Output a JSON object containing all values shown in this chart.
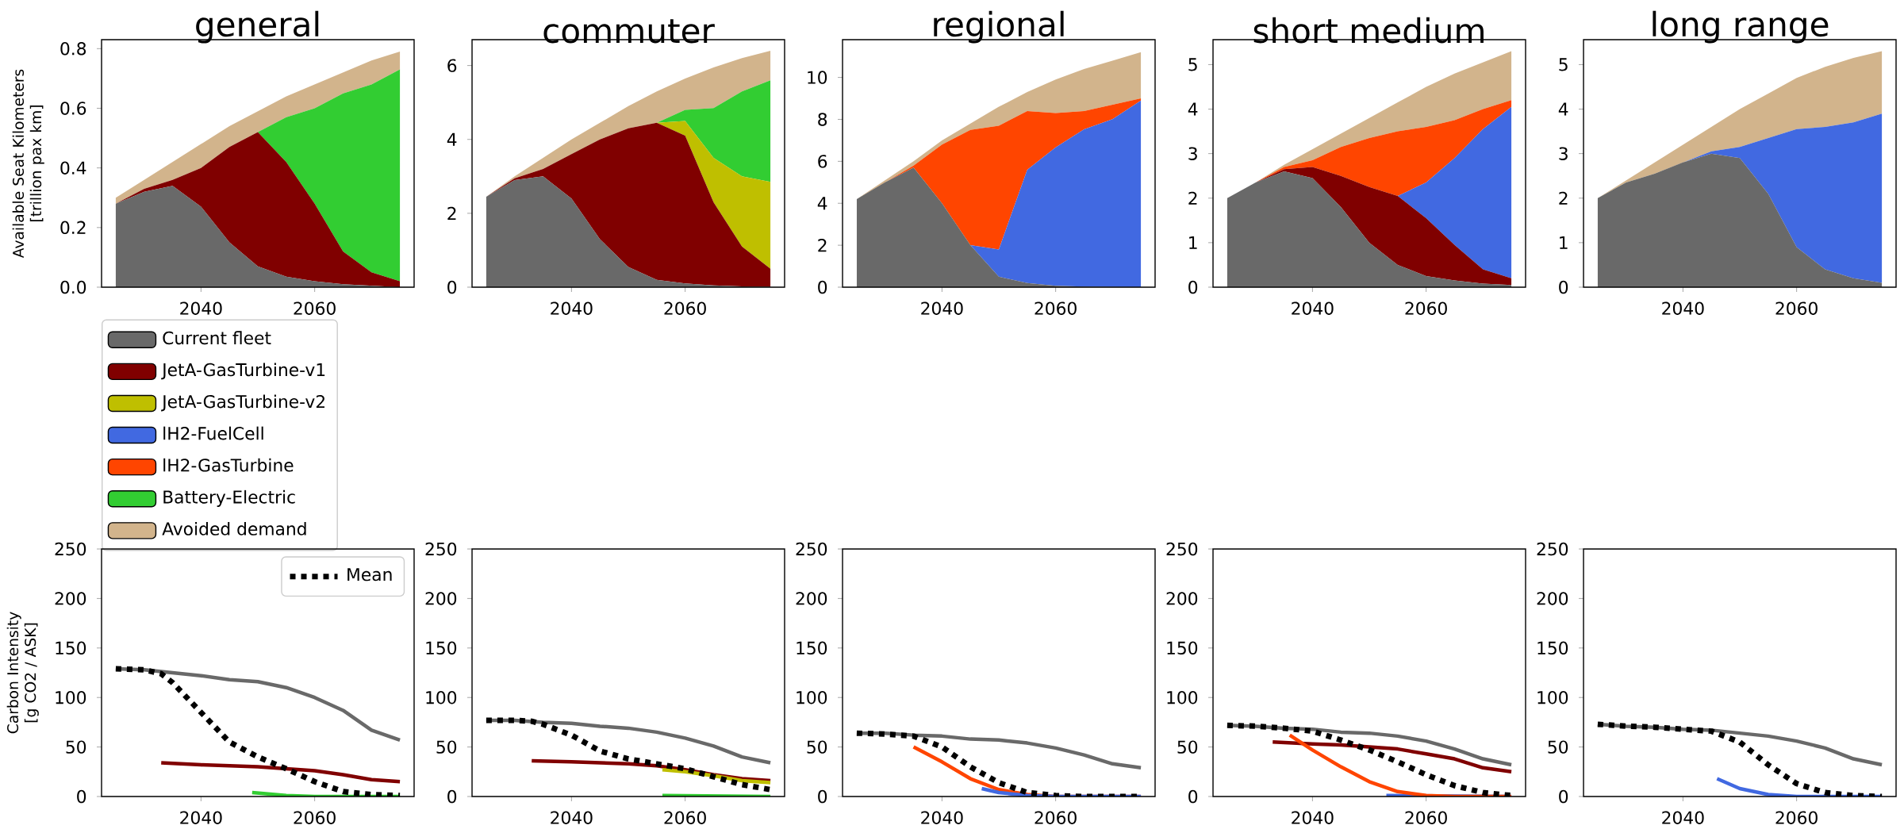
{
  "chart_data": [
    {
      "type": "area",
      "stacked": true,
      "title": "general",
      "ylabel": "Available Seat Kilometers [trillion pax km]",
      "legend": "bottom",
      "x": [
        2025,
        2030,
        2035,
        2040,
        2045,
        2050,
        2055,
        2060,
        2065,
        2070,
        2075
      ],
      "xlim": [
        2022.5,
        2077.5
      ],
      "xticks": [
        2040,
        2060
      ],
      "ylim": [
        0,
        0.83
      ],
      "yticks": [
        {
          "value": 0,
          "label": "0.0"
        },
        0.2,
        0.4,
        0.6,
        0.8
      ],
      "series": [
        {
          "name": "Current fleet",
          "color": "#696969",
          "values": [
            0.28,
            0.32,
            0.34,
            0.27,
            0.15,
            0.07,
            0.035,
            0.02,
            0.01,
            0.005,
            0
          ]
        },
        {
          "name": "JetA-GasTurbine-v1",
          "color": "#800000",
          "values": [
            0,
            0.01,
            0.02,
            0.13,
            0.32,
            0.45,
            0.385,
            0.26,
            0.11,
            0.045,
            0.02
          ]
        },
        {
          "name": "JetA-GasTurbine-v2",
          "color": "#bfbf00",
          "values": [
            null,
            null,
            null,
            null,
            null,
            null,
            null,
            null,
            null,
            null,
            null
          ]
        },
        {
          "name": "lH2-FuelCell",
          "color": "#4169e1",
          "values": [
            null,
            null,
            null,
            null,
            null,
            null,
            null,
            null,
            null,
            null,
            null
          ]
        },
        {
          "name": "lH2-GasTurbine",
          "color": "#ff4500",
          "values": [
            null,
            null,
            null,
            null,
            null,
            null,
            null,
            null,
            null,
            null,
            null
          ]
        },
        {
          "name": "Battery-Electric",
          "color": "#32cd32",
          "values": [
            0,
            0,
            0,
            0,
            0,
            0,
            0.15,
            0.32,
            0.53,
            0.63,
            0.71
          ]
        },
        {
          "name": "Avoided demand",
          "color": "#d2b48c",
          "values": [
            0.02,
            0.03,
            0.06,
            0.08,
            0.07,
            0.07,
            0.07,
            0.08,
            0.07,
            0.08,
            0.06
          ]
        }
      ]
    },
    {
      "type": "area",
      "stacked": true,
      "title": "commuter",
      "x": [
        2025,
        2030,
        2035,
        2040,
        2045,
        2050,
        2055,
        2060,
        2065,
        2070,
        2075
      ],
      "xlim": [
        2022.5,
        2077.5
      ],
      "xticks": [
        2040,
        2060
      ],
      "ylim": [
        0,
        6.7
      ],
      "yticks": [
        0,
        2,
        4,
        6
      ],
      "series": [
        {
          "color": "#696969",
          "values": [
            2.45,
            2.9,
            3.0,
            2.4,
            1.3,
            0.55,
            0.2,
            0.1,
            0.05,
            0.02,
            0.01
          ]
        },
        {
          "color": "#800000",
          "values": [
            0,
            0.05,
            0.2,
            1.2,
            2.7,
            3.75,
            4.25,
            4.0,
            2.25,
            1.08,
            0.49
          ]
        },
        {
          "color": "#bfbf00",
          "values": [
            0,
            0,
            0,
            0,
            0,
            0,
            0,
            0.4,
            1.2,
            1.9,
            2.35
          ]
        },
        {
          "color": "#32cd32",
          "values": [
            0,
            0,
            0,
            0,
            0,
            0,
            0,
            0.3,
            1.35,
            2.3,
            2.75
          ]
        },
        {
          "color": "#d2b48c",
          "values": [
            0,
            0.05,
            0.3,
            0.4,
            0.45,
            0.6,
            0.85,
            0.85,
            1.1,
            0.9,
            0.8
          ]
        }
      ]
    },
    {
      "type": "area",
      "stacked": true,
      "title": "regional",
      "x": [
        2025,
        2030,
        2035,
        2040,
        2045,
        2050,
        2055,
        2060,
        2065,
        2070,
        2075
      ],
      "xlim": [
        2022.5,
        2077.5
      ],
      "xticks": [
        2040,
        2060
      ],
      "ylim": [
        0,
        11.8
      ],
      "yticks": [
        0,
        2,
        4,
        6,
        8,
        10
      ],
      "series": [
        {
          "color": "#696969",
          "values": [
            4.2,
            5.0,
            5.7,
            4.0,
            2.0,
            0.5,
            0.2,
            0.07,
            0.03,
            0.01,
            0
          ]
        },
        {
          "color": "#4169e1",
          "values": [
            0,
            0,
            0,
            0,
            0,
            1.3,
            5.4,
            6.6,
            7.5,
            8.0,
            8.9
          ]
        },
        {
          "color": "#ff4500",
          "values": [
            0,
            0,
            0.1,
            2.8,
            5.5,
            5.9,
            2.8,
            1.63,
            0.87,
            0.69,
            0.1
          ]
        },
        {
          "color": "#d2b48c",
          "values": [
            0,
            0.1,
            0.2,
            0.2,
            0.3,
            0.9,
            0.9,
            1.6,
            2.0,
            2.1,
            2.2
          ]
        }
      ]
    },
    {
      "type": "area",
      "stacked": true,
      "title": "short medium",
      "x": [
        2025,
        2030,
        2035,
        2040,
        2045,
        2050,
        2055,
        2060,
        2065,
        2070,
        2075
      ],
      "xlim": [
        2022.5,
        2077.5
      ],
      "xticks": [
        2040,
        2060
      ],
      "ylim": [
        0,
        5.56
      ],
      "yticks": [
        0,
        1,
        2,
        3,
        4,
        5
      ],
      "series": [
        {
          "color": "#696969",
          "values": [
            2.0,
            2.35,
            2.6,
            2.45,
            1.8,
            1.0,
            0.5,
            0.25,
            0.15,
            0.08,
            0.05
          ]
        },
        {
          "color": "#800000",
          "values": [
            0,
            0,
            0.05,
            0.25,
            0.7,
            1.25,
            1.55,
            1.3,
            0.8,
            0.32,
            0.15
          ]
        },
        {
          "color": "#4169e1",
          "values": [
            0,
            0,
            0,
            0,
            0,
            0,
            0,
            0.8,
            1.95,
            3.15,
            3.85
          ]
        },
        {
          "color": "#ff4500",
          "values": [
            0,
            0,
            0.05,
            0.15,
            0.65,
            1.1,
            1.45,
            1.25,
            0.85,
            0.45,
            0.15
          ]
        },
        {
          "color": "#d2b48c",
          "values": [
            0,
            0,
            0.05,
            0.25,
            0.3,
            0.45,
            0.65,
            0.9,
            1.05,
            1.05,
            1.1
          ]
        }
      ]
    },
    {
      "type": "area",
      "stacked": true,
      "title": "long range",
      "x": [
        2025,
        2030,
        2035,
        2040,
        2045,
        2050,
        2055,
        2060,
        2065,
        2070,
        2075
      ],
      "xlim": [
        2022.5,
        2077.5
      ],
      "xticks": [
        2040,
        2060
      ],
      "ylim": [
        0,
        5.56
      ],
      "yticks": [
        0,
        1,
        2,
        3,
        4,
        5
      ],
      "series": [
        {
          "color": "#696969",
          "values": [
            2.0,
            2.35,
            2.55,
            2.8,
            3.0,
            2.9,
            2.1,
            0.9,
            0.4,
            0.2,
            0.1
          ]
        },
        {
          "color": "#4169e1",
          "values": [
            0,
            0,
            0,
            0,
            0.05,
            0.25,
            1.25,
            2.65,
            3.2,
            3.5,
            3.8
          ]
        },
        {
          "color": "#d2b48c",
          "values": [
            0,
            0.05,
            0.25,
            0.4,
            0.55,
            0.85,
            1.0,
            1.15,
            1.35,
            1.45,
            1.4
          ]
        }
      ]
    },
    {
      "type": "line",
      "ylabel": "Carbon Intensity [g CO2 / ASK]",
      "legend": "top right",
      "xlim": [
        2022.5,
        2077.5
      ],
      "xticks": [
        2040,
        2060
      ],
      "ylim": [
        0,
        250
      ],
      "yticks": [
        0,
        50,
        100,
        150,
        200,
        250
      ],
      "series": [
        {
          "color": "#696969",
          "x": [
            2025,
            2030,
            2035,
            2040,
            2045,
            2050,
            2055,
            2060,
            2065,
            2070,
            2075
          ],
          "values": [
            129,
            128,
            125,
            122,
            118,
            116,
            110,
            100,
            87,
            67,
            57
          ]
        },
        {
          "color": "#800000",
          "x": [
            2033,
            2040,
            2050,
            2060,
            2065,
            2070,
            2075
          ],
          "values": [
            34,
            32,
            30,
            26,
            22,
            17,
            15
          ]
        },
        {
          "color": "#32cd32",
          "x": [
            2049,
            2055,
            2060,
            2075
          ],
          "values": [
            4,
            1,
            0,
            0
          ]
        },
        {
          "name": "Mean",
          "color": "#000000",
          "line_style": "dotted",
          "x": [
            2025,
            2030,
            2033,
            2035,
            2040,
            2045,
            2050,
            2055,
            2060,
            2065,
            2070,
            2075
          ],
          "values": [
            129,
            128,
            124,
            115,
            85,
            55,
            40,
            28,
            15,
            5,
            2,
            1
          ]
        }
      ]
    },
    {
      "type": "line",
      "xlim": [
        2022.5,
        2077.5
      ],
      "xticks": [
        2040,
        2060
      ],
      "ylim": [
        0,
        250
      ],
      "yticks": [
        0,
        50,
        100,
        150,
        200,
        250
      ],
      "series": [
        {
          "color": "#696969",
          "x": [
            2025,
            2030,
            2035,
            2040,
            2045,
            2050,
            2055,
            2060,
            2065,
            2070,
            2075
          ],
          "values": [
            77,
            77,
            75,
            74,
            71,
            69,
            65,
            59,
            51,
            40,
            34
          ]
        },
        {
          "color": "#800000",
          "x": [
            2033,
            2040,
            2050,
            2055,
            2060,
            2065,
            2070,
            2075
          ],
          "values": [
            36,
            35,
            33,
            31,
            27,
            22,
            18,
            16
          ]
        },
        {
          "color": "#bfbf00",
          "x": [
            2056,
            2060,
            2065,
            2070,
            2075
          ],
          "values": [
            27,
            25,
            21,
            16,
            14
          ]
        },
        {
          "color": "#32cd32",
          "x": [
            2056,
            2075
          ],
          "values": [
            1,
            0
          ]
        },
        {
          "color": "#000000",
          "line_style": "dotted",
          "x": [
            2025,
            2030,
            2033,
            2035,
            2040,
            2045,
            2050,
            2055,
            2060,
            2065,
            2070,
            2075
          ],
          "values": [
            77,
            77,
            76,
            73,
            62,
            46,
            38,
            33,
            28,
            20,
            12,
            7
          ]
        }
      ]
    },
    {
      "type": "line",
      "xlim": [
        2022.5,
        2077.5
      ],
      "xticks": [
        2040,
        2060
      ],
      "ylim": [
        0,
        250
      ],
      "yticks": [
        0,
        50,
        100,
        150,
        200,
        250
      ],
      "series": [
        {
          "color": "#696969",
          "x": [
            2025,
            2030,
            2035,
            2040,
            2045,
            2050,
            2055,
            2060,
            2065,
            2070,
            2075
          ],
          "values": [
            64,
            64,
            62,
            61,
            58,
            57,
            54,
            49,
            42,
            33,
            29
          ]
        },
        {
          "color": "#ff4500",
          "x": [
            2035,
            2040,
            2045,
            2050,
            2055,
            2060,
            2075
          ],
          "values": [
            50,
            35,
            18,
            7,
            2,
            0,
            0
          ]
        },
        {
          "color": "#4169e1",
          "x": [
            2047,
            2050,
            2055,
            2060,
            2075
          ],
          "values": [
            8,
            4,
            1,
            0,
            0
          ]
        },
        {
          "color": "#000000",
          "line_style": "dotted",
          "x": [
            2025,
            2030,
            2035,
            2040,
            2045,
            2050,
            2055,
            2060,
            2065,
            2070,
            2075
          ],
          "values": [
            64,
            63,
            61,
            50,
            30,
            14,
            4,
            1,
            0,
            0,
            0
          ]
        }
      ]
    },
    {
      "type": "line",
      "xlim": [
        2022.5,
        2077.5
      ],
      "xticks": [
        2040,
        2060
      ],
      "ylim": [
        0,
        250
      ],
      "yticks": [
        0,
        50,
        100,
        150,
        200,
        250
      ],
      "series": [
        {
          "color": "#696969",
          "x": [
            2025,
            2030,
            2035,
            2040,
            2045,
            2050,
            2055,
            2060,
            2065,
            2070,
            2075
          ],
          "values": [
            72,
            71,
            69,
            68,
            65,
            64,
            61,
            56,
            48,
            38,
            32
          ]
        },
        {
          "color": "#800000",
          "x": [
            2033,
            2040,
            2045,
            2050,
            2055,
            2060,
            2065,
            2070,
            2075
          ],
          "values": [
            55,
            53,
            52,
            50,
            48,
            43,
            38,
            29,
            25
          ]
        },
        {
          "color": "#4169e1",
          "x": [
            2053,
            2075
          ],
          "values": [
            1,
            0
          ]
        },
        {
          "color": "#ff4500",
          "x": [
            2036,
            2040,
            2045,
            2050,
            2055,
            2060,
            2065,
            2075
          ],
          "values": [
            62,
            47,
            30,
            15,
            5,
            1,
            0,
            0
          ]
        },
        {
          "color": "#000000",
          "line_style": "dotted",
          "x": [
            2025,
            2030,
            2035,
            2040,
            2045,
            2050,
            2055,
            2060,
            2065,
            2070,
            2075
          ],
          "values": [
            72,
            71,
            69,
            66,
            57,
            47,
            35,
            22,
            11,
            4,
            1
          ]
        }
      ]
    },
    {
      "type": "line",
      "xlim": [
        2022.5,
        2077.5
      ],
      "xticks": [
        2040,
        2060
      ],
      "ylim": [
        0,
        250
      ],
      "yticks": [
        0,
        50,
        100,
        150,
        200,
        250
      ],
      "series": [
        {
          "color": "#696969",
          "x": [
            2025,
            2030,
            2035,
            2040,
            2045,
            2050,
            2055,
            2060,
            2065,
            2070,
            2075
          ],
          "values": [
            73,
            71,
            70,
            68,
            67,
            64,
            61,
            56,
            49,
            38,
            32
          ]
        },
        {
          "color": "#4169e1",
          "x": [
            2046,
            2050,
            2055,
            2060,
            2075
          ],
          "values": [
            18,
            8,
            2,
            0,
            0
          ]
        },
        {
          "color": "#000000",
          "line_style": "dotted",
          "x": [
            2025,
            2030,
            2035,
            2040,
            2045,
            2050,
            2055,
            2060,
            2065,
            2070,
            2075
          ],
          "values": [
            73,
            71,
            70,
            68,
            66,
            55,
            32,
            13,
            4,
            1,
            0
          ]
        }
      ]
    }
  ]
}
